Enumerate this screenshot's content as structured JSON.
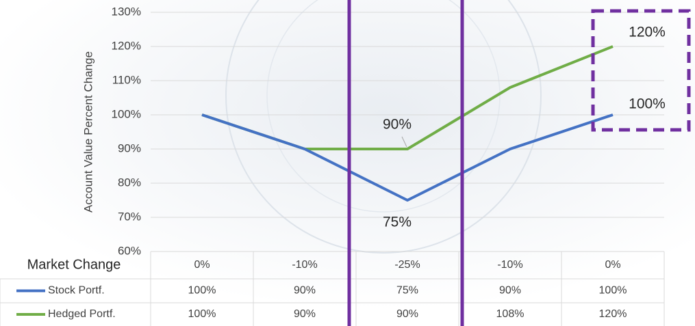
{
  "chart_data": {
    "type": "line",
    "y_label": "Account Value Percent Change",
    "x_label": "Market Change",
    "categories": [
      "0%",
      "-10%",
      "-25%",
      "-10%",
      "0%"
    ],
    "series": [
      {
        "name": "Stock Portf.",
        "color": "#4472c4",
        "values": [
          100,
          90,
          75,
          90,
          100
        ],
        "value_labels": [
          "100%",
          "90%",
          "75%",
          "90%",
          "100%"
        ]
      },
      {
        "name": "Hedged Portf.",
        "color": "#70ad47",
        "values": [
          100,
          90,
          90,
          108,
          120
        ],
        "value_labels": [
          "100%",
          "90%",
          "90%",
          "108%",
          "120%"
        ]
      }
    ],
    "ylim": [
      60,
      130
    ],
    "yticks": [
      {
        "value": 60,
        "label": "60%"
      },
      {
        "value": 70,
        "label": "70%"
      },
      {
        "value": 80,
        "label": "80%"
      },
      {
        "value": 90,
        "label": "90%"
      },
      {
        "value": 100,
        "label": "100%"
      },
      {
        "value": 110,
        "label": "110%"
      },
      {
        "value": 120,
        "label": "120%"
      },
      {
        "value": 130,
        "label": "130%"
      }
    ],
    "grid": true
  }
}
